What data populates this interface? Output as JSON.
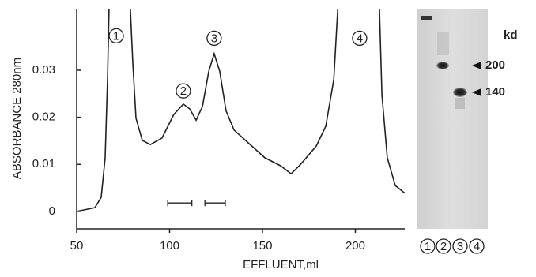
{
  "chart_data": {
    "type": "line",
    "xlabel": "EFFLUENT,ml",
    "ylabel": "ABSORBANCE 280nm",
    "xlim": [
      50,
      226.6
    ],
    "ylim": [
      -0.0037,
      0.0429
    ],
    "xticks": [
      50,
      100,
      150,
      200
    ],
    "yticks": [
      0,
      0.01,
      0.02,
      0.03
    ],
    "x": [
      50,
      59.8,
      63.2,
      65.3,
      66.6,
      67.4,
      null,
      78.9,
      80.2,
      81.9,
      85.3,
      89.6,
      95.9,
      102.3,
      107.4,
      110.8,
      114.3,
      117.7,
      121.1,
      124.0,
      127.0,
      130.4,
      134.7,
      142.8,
      151.3,
      159.8,
      165.4,
      170.5,
      179.0,
      184.1,
      188.4,
      190.5,
      null,
      213.0,
      214.3,
      217.2,
      221.5,
      226.6
    ],
    "series": [
      {
        "color": "#222222",
        "values": [
          0.0,
          0.0008,
          0.003,
          0.0114,
          0.028,
          0.0429,
          null,
          0.0429,
          0.0315,
          0.0198,
          0.0151,
          0.0142,
          0.0156,
          0.0206,
          0.0228,
          0.0218,
          0.0194,
          0.0223,
          0.0298,
          0.0335,
          0.0298,
          0.0214,
          0.0173,
          0.0144,
          0.0114,
          0.0097,
          0.008,
          0.01,
          0.0139,
          0.0181,
          0.028,
          0.0429,
          null,
          0.0429,
          0.0248,
          0.0114,
          0.0055,
          0.0039
        ]
      }
    ],
    "pooled_fractions": [
      {
        "x": [
          99,
          112
        ],
        "y": 0.0018
      },
      {
        "x": [
          119,
          130
        ],
        "y": 0.0018
      }
    ],
    "annotations": [
      {
        "text": "1",
        "x": 71.3,
        "y": 0.0373
      },
      {
        "text": "2",
        "x": 107.4,
        "y": 0.0256
      },
      {
        "text": "3",
        "x": 124.0,
        "y": 0.0368
      },
      {
        "text": "4",
        "x": 202.3,
        "y": 0.0368
      }
    ],
    "gel": {
      "unit_label": "kd",
      "markers": [
        "200",
        "140"
      ],
      "lanes": [
        "1",
        "2",
        "3",
        "4"
      ]
    }
  }
}
